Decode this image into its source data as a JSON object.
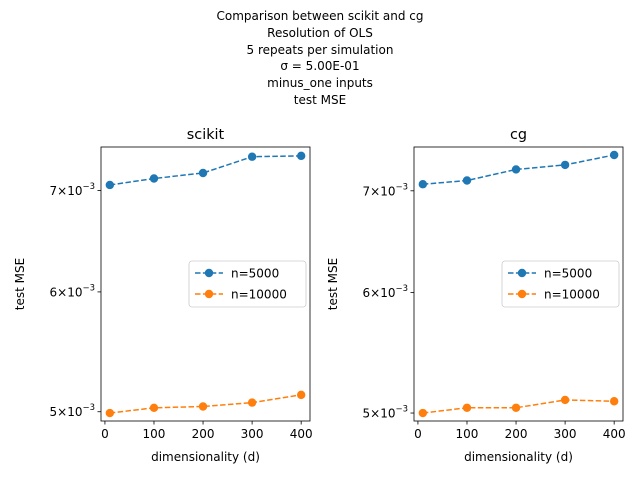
{
  "figure": {
    "suptitle_lines": [
      "Comparison between scikit and cg",
      "Resolution of OLS",
      "5 repeats per simulation",
      "σ = 5.00E-01",
      "minus_one inputs",
      "test MSE"
    ]
  },
  "colors": {
    "n5000": "#1f77b4",
    "n10000": "#ff7f0e"
  },
  "chart_data": [
    {
      "type": "line",
      "title": "scikit",
      "xlabel": "dimensionality (d)",
      "ylabel": "test MSE",
      "yscale": "log",
      "xlim": [
        -8,
        418
      ],
      "ylim": [
        0.00493,
        0.00748
      ],
      "x": [
        10,
        100,
        200,
        300,
        400
      ],
      "xticks": [
        0,
        100,
        200,
        300,
        400
      ],
      "yticks": [
        {
          "value": 0.005,
          "base": "5",
          "exp": "−3"
        },
        {
          "value": 0.006,
          "base": "6",
          "exp": "−3"
        },
        {
          "value": 0.007,
          "base": "7",
          "exp": "−3"
        }
      ],
      "series": [
        {
          "name": "n=5000",
          "values": [
            0.00706,
            0.00713,
            0.00719,
            0.00737,
            0.00738
          ]
        },
        {
          "name": "n=10000",
          "values": [
            0.00499,
            0.00503,
            0.00504,
            0.00507,
            0.00513
          ]
        }
      ],
      "legend": "center-right",
      "grid": false
    },
    {
      "type": "line",
      "title": "cg",
      "xlabel": "dimensionality (d)",
      "ylabel": "test MSE",
      "yscale": "log",
      "xlim": [
        -8,
        418
      ],
      "ylim": [
        0.00494,
        0.00748
      ],
      "x": [
        10,
        100,
        200,
        300,
        400
      ],
      "xticks": [
        0,
        100,
        200,
        300,
        400
      ],
      "yticks": [
        {
          "value": 0.005,
          "base": "5",
          "exp": "−3"
        },
        {
          "value": 0.006,
          "base": "6",
          "exp": "−3"
        },
        {
          "value": 0.007,
          "base": "7",
          "exp": "−3"
        }
      ],
      "series": [
        {
          "name": "n=5000",
          "values": [
            0.00707,
            0.00711,
            0.00723,
            0.00728,
            0.00739
          ]
        },
        {
          "name": "n=10000",
          "values": [
            0.005,
            0.00504,
            0.00504,
            0.0051,
            0.00509
          ]
        }
      ],
      "legend": "center-right",
      "grid": false
    }
  ]
}
